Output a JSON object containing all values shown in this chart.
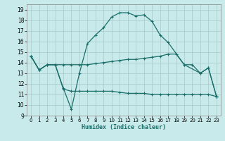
{
  "xlabel": "Humidex (Indice chaleur)",
  "bg_color": "#c8eaea",
  "grid_color": "#b0d0d0",
  "line_color": "#1a6e6a",
  "xlim": [
    -0.5,
    23.5
  ],
  "ylim": [
    9,
    19.5
  ],
  "yticks": [
    9,
    10,
    11,
    12,
    13,
    14,
    15,
    16,
    17,
    18,
    19
  ],
  "xticks": [
    0,
    1,
    2,
    3,
    4,
    5,
    6,
    7,
    8,
    9,
    10,
    11,
    12,
    13,
    14,
    15,
    16,
    17,
    18,
    19,
    20,
    21,
    22,
    23
  ],
  "line1_x": [
    0,
    1,
    2,
    3,
    4,
    5,
    6,
    7,
    8,
    9,
    10,
    11,
    12,
    13,
    14,
    15,
    16,
    17,
    19,
    21,
    22,
    23
  ],
  "line1_y": [
    14.6,
    13.3,
    13.8,
    13.8,
    11.6,
    9.6,
    13.0,
    15.8,
    16.6,
    17.3,
    18.3,
    18.7,
    18.7,
    18.4,
    18.5,
    17.9,
    16.6,
    15.9,
    13.8,
    13.0,
    13.5,
    10.8
  ],
  "line2_x": [
    0,
    1,
    2,
    3,
    4,
    5,
    6,
    7,
    8,
    9,
    10,
    11,
    12,
    13,
    14,
    15,
    16,
    17,
    18,
    19,
    20,
    21,
    22,
    23
  ],
  "line2_y": [
    14.6,
    13.3,
    13.8,
    13.8,
    11.5,
    11.3,
    11.3,
    11.3,
    11.3,
    11.3,
    11.3,
    11.2,
    11.1,
    11.1,
    11.1,
    11.0,
    11.0,
    11.0,
    11.0,
    11.0,
    11.0,
    11.0,
    11.0,
    10.8
  ],
  "line3_x": [
    0,
    1,
    2,
    3,
    4,
    5,
    6,
    7,
    8,
    9,
    10,
    11,
    12,
    13,
    14,
    15,
    16,
    17,
    18,
    19,
    20,
    21,
    22,
    23
  ],
  "line3_y": [
    14.6,
    13.3,
    13.8,
    13.8,
    13.8,
    13.8,
    13.8,
    13.8,
    13.9,
    14.0,
    14.1,
    14.2,
    14.3,
    14.3,
    14.4,
    14.5,
    14.6,
    14.8,
    14.8,
    13.8,
    13.8,
    13.0,
    13.5,
    10.8
  ]
}
